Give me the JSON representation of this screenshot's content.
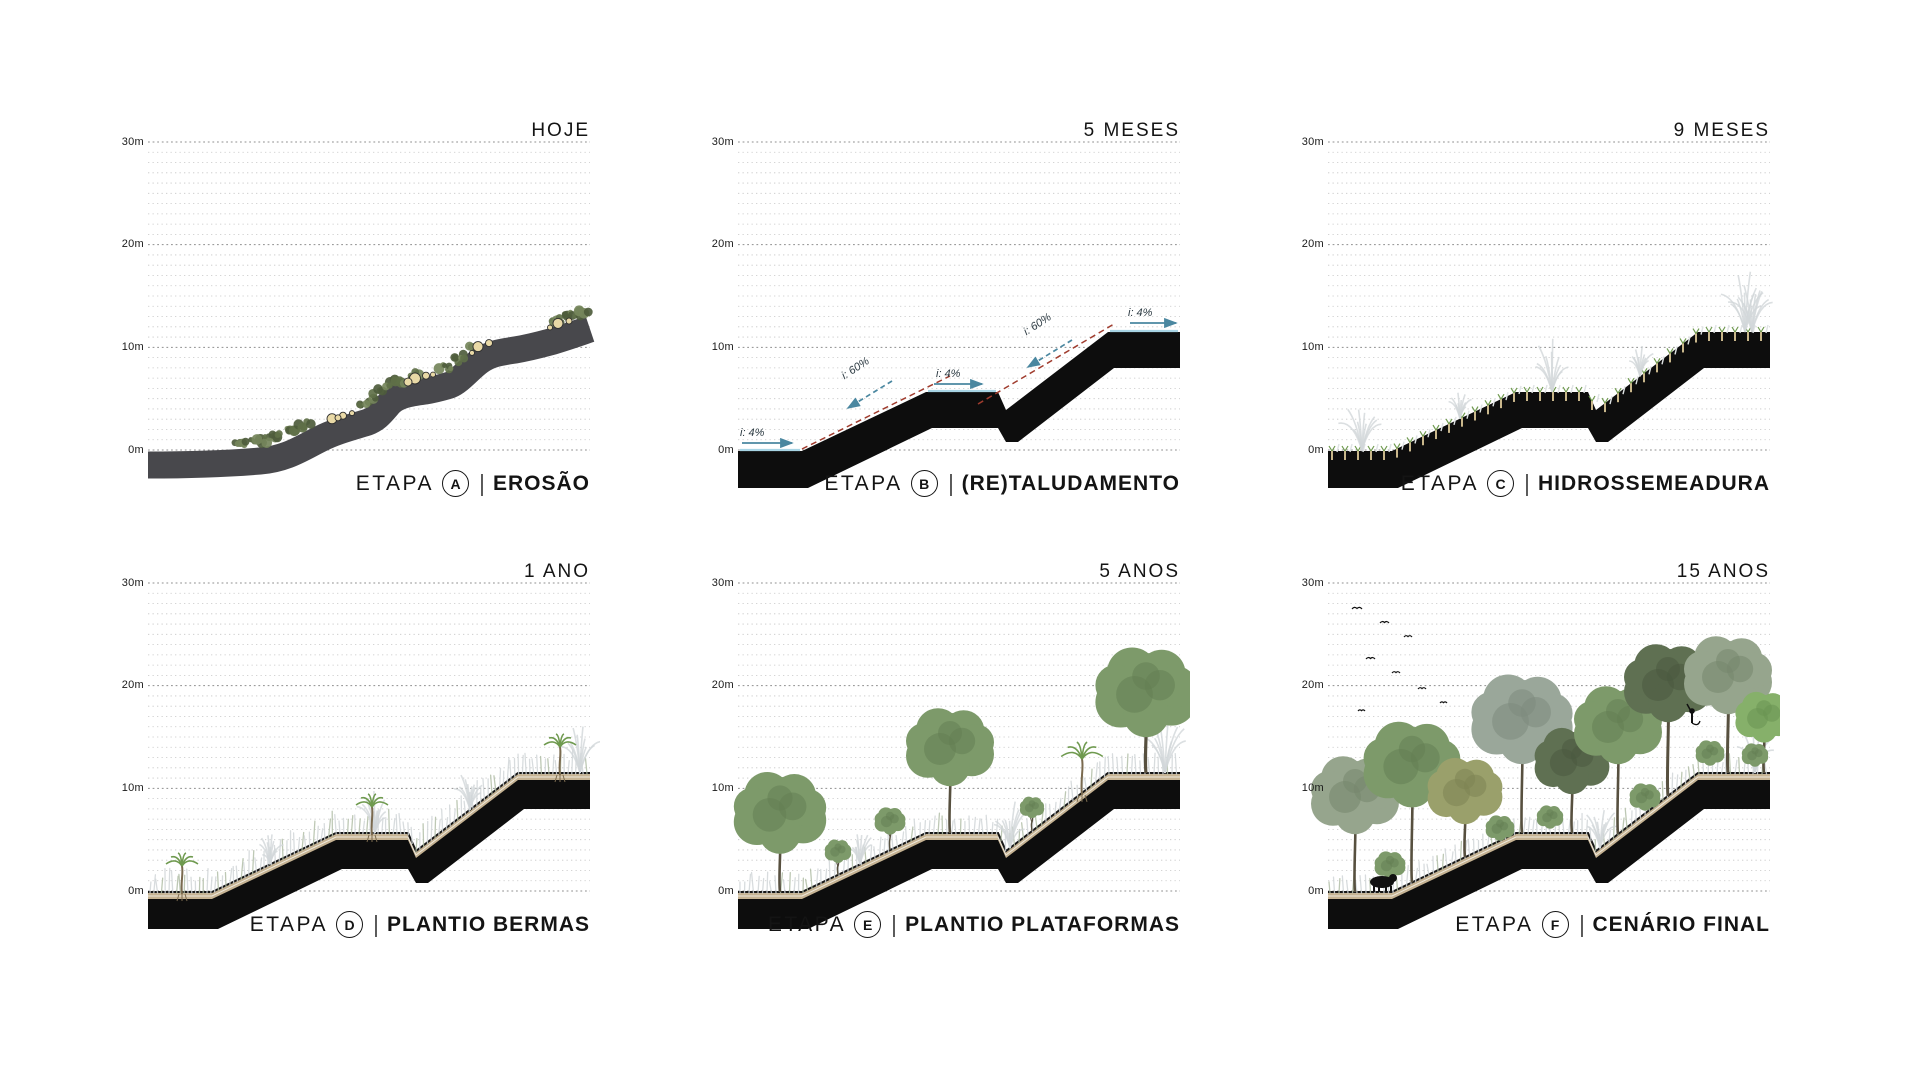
{
  "labels": {
    "etapa": "ETAPA",
    "pipe": "|"
  },
  "axis": {
    "unit_labels": [
      "30m",
      "20m",
      "10m",
      "0m"
    ]
  },
  "panels": [
    {
      "time": "HOJE",
      "letter": "A",
      "stage": "EROSÃO"
    },
    {
      "time": "5 MESES",
      "letter": "B",
      "stage": "(RE)TALUDAMENTO",
      "annotations": {
        "flat_slope": "i: 4%",
        "steep_slope": "i: 60%"
      }
    },
    {
      "time": "9 MESES",
      "letter": "C",
      "stage": "HIDROSSEMEADURA"
    },
    {
      "time": "1 ANO",
      "letter": "D",
      "stage": "PLANTIO BERMAS"
    },
    {
      "time": "5 ANOS",
      "letter": "E",
      "stage": "PLANTIO PLATAFORMAS"
    },
    {
      "time": "15 ANOS",
      "letter": "F",
      "stage": "CENÁRIO FINAL"
    }
  ],
  "colors": {
    "background": "#ffffff",
    "grid_minor": "#c6c6c6",
    "grid_major": "#8f8f8f",
    "terrain_erosion_gray": "#48484c",
    "terrain_cut_black": "#0d0d0d",
    "soil_band_tan": "#c6b393",
    "soil_band_light": "#efe9dc",
    "rock_tan": "#e9d9a6",
    "shrub_green": "#5f7048",
    "sprout_green": "#6f9a4f",
    "grass_pale": "#d2d7d9",
    "grass_sage": "#b2bfa8",
    "canopy_green": "#7d9a6a",
    "canopy_green_dark": "#648053",
    "canopy_olive": "#9aa06b",
    "canopy_olive_dark": "#7d8354",
    "canopy_sage": "#96a58d",
    "canopy_sage_dark": "#77876d",
    "canopy_deep": "#5f7052",
    "canopy_deep_dark": "#4a5940",
    "trunk_brown": "#57503f",
    "arrow_blue": "#4a87a0",
    "regrade_dash_red": "#a03c2e",
    "water_blue": "#a8d4e4",
    "stake_tan": "#c9b78b",
    "fauna_black": "#111111"
  }
}
